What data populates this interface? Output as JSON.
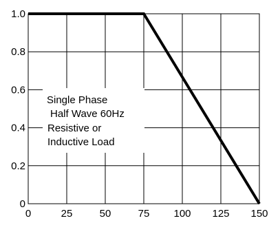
{
  "chart_data": {
    "type": "line",
    "title": "",
    "xlabel": "",
    "ylabel": "",
    "xlim": [
      0,
      150
    ],
    "ylim": [
      0,
      1.0
    ],
    "grid": true,
    "x_ticks": [
      0,
      25,
      50,
      75,
      100,
      125,
      150
    ],
    "x_tick_labels": [
      "0",
      "25",
      "50",
      "75",
      "100",
      "125",
      "150"
    ],
    "y_ticks": [
      0,
      0.2,
      0.4,
      0.6,
      0.8,
      1.0
    ],
    "y_tick_labels": [
      "0",
      "0.2",
      "0.4",
      "0.6",
      "0.8",
      "1.0"
    ],
    "series": [
      {
        "x": [
          0,
          75,
          150
        ],
        "y": [
          1.0,
          1.0,
          0
        ]
      }
    ],
    "annotation": {
      "lines": [
        "Single Phase",
        "Half Wave 60Hz",
        "Resistive or",
        "Inductive Load"
      ]
    },
    "colors": {
      "line": "#000000",
      "grid": "#000000",
      "background": "#ffffff"
    }
  }
}
